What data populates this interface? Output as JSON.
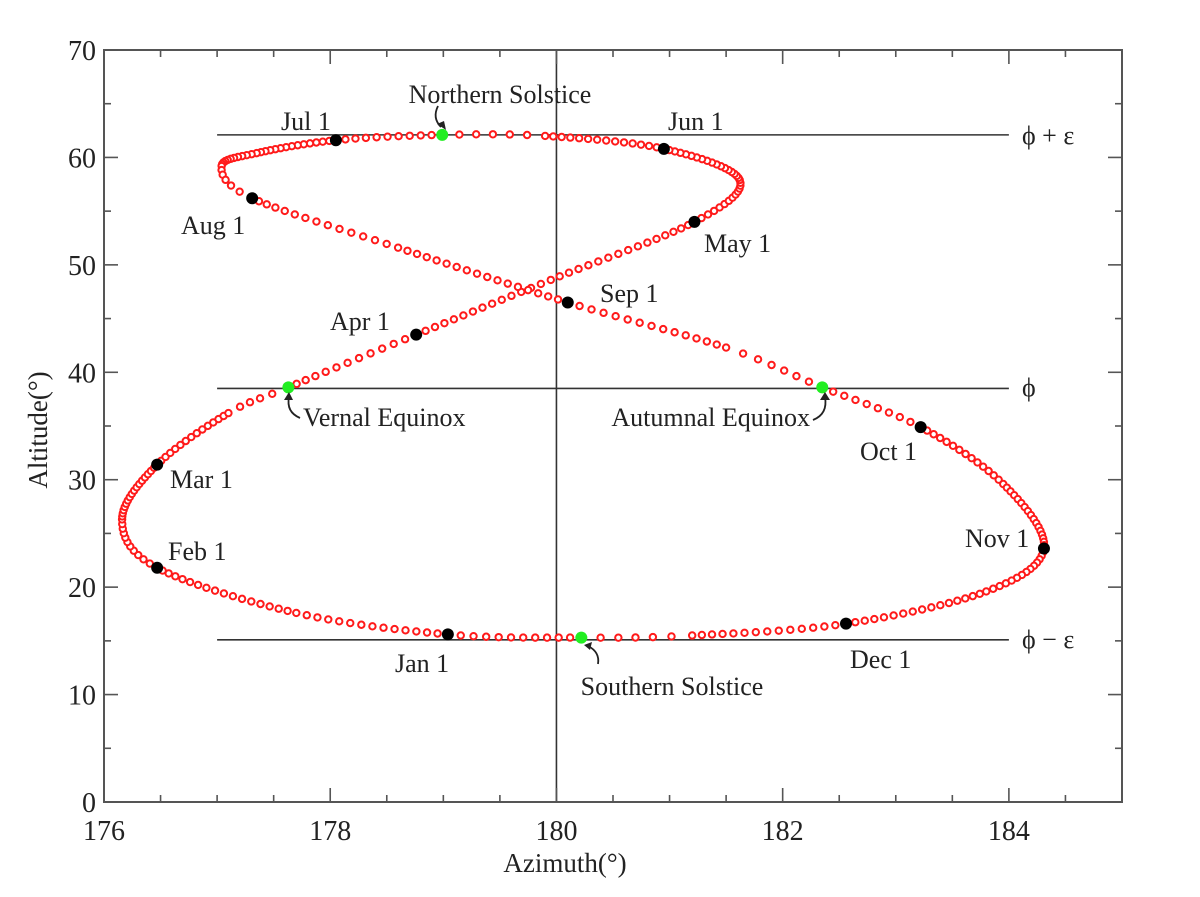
{
  "chart_data": {
    "type": "scatter",
    "xlabel": "Azimuth(°)",
    "ylabel": "Altitude(°)",
    "xlim": [
      176,
      185
    ],
    "ylim": [
      0,
      70
    ],
    "x_ticks": [
      "176",
      "178",
      "180",
      "182",
      "184"
    ],
    "y_ticks": [
      "0",
      "10",
      "20",
      "30",
      "40",
      "50",
      "60",
      "70"
    ],
    "grid": false,
    "colors": {
      "curve": "#ff1a1a",
      "month_marker": "#000000",
      "solstice_equinox_marker": "#22ee22",
      "lines": "#333333"
    },
    "reference_lines": {
      "horizontal": [
        {
          "label": "ϕ + ε",
          "altitude": 62.1
        },
        {
          "label": "ϕ",
          "altitude": 38.5
        },
        {
          "label": "ϕ − ε",
          "altitude": 15.1
        }
      ],
      "vertical_azimuth": 180
    },
    "curve_points_day_az_alt": [
      [
        1,
        179.04,
        15.6
      ],
      [
        15,
        177.7,
        17.6
      ],
      [
        32,
        176.47,
        21.8
      ],
      [
        43,
        176.16,
        26.3
      ],
      [
        60,
        176.47,
        31.4
      ],
      [
        74,
        177.1,
        36.2
      ],
      [
        79,
        177.63,
        38.6
      ],
      [
        91,
        178.76,
        43.5
      ],
      [
        105,
        179.95,
        48.6
      ],
      [
        121,
        181.22,
        54.0
      ],
      [
        134,
        181.62,
        57.9
      ],
      [
        152,
        180.95,
        60.8
      ],
      [
        166,
        179.9,
        62.0
      ],
      [
        172,
        178.99,
        62.1
      ],
      [
        182,
        178.05,
        61.6
      ],
      [
        196,
        177.35,
        60.4
      ],
      [
        207,
        177.04,
        59.2
      ],
      [
        213,
        177.31,
        56.2
      ],
      [
        227,
        178.6,
        51.6
      ],
      [
        244,
        180.1,
        46.5
      ],
      [
        258,
        181.5,
        42.3
      ],
      [
        265,
        182.35,
        38.6
      ],
      [
        274,
        183.22,
        34.9
      ],
      [
        288,
        183.95,
        29.6
      ],
      [
        305,
        184.31,
        23.6
      ],
      [
        319,
        183.8,
        19.6
      ],
      [
        335,
        182.56,
        16.6
      ],
      [
        349,
        181.2,
        15.5
      ],
      [
        355,
        180.22,
        15.3
      ]
    ],
    "month_markers": [
      {
        "label": "Jan 1",
        "az": 179.04,
        "alt": 15.6
      },
      {
        "label": "Feb 1",
        "az": 176.47,
        "alt": 21.8
      },
      {
        "label": "Mar 1",
        "az": 176.47,
        "alt": 31.4
      },
      {
        "label": "Apr 1",
        "az": 178.76,
        "alt": 43.5
      },
      {
        "label": "May 1",
        "az": 181.22,
        "alt": 54.0
      },
      {
        "label": "Jun 1",
        "az": 180.95,
        "alt": 60.8
      },
      {
        "label": "Jul 1",
        "az": 178.05,
        "alt": 61.6
      },
      {
        "label": "Aug 1",
        "az": 177.31,
        "alt": 56.2
      },
      {
        "label": "Sep 1",
        "az": 180.1,
        "alt": 46.5
      },
      {
        "label": "Oct 1",
        "az": 183.22,
        "alt": 34.9
      },
      {
        "label": "Nov 1",
        "az": 184.31,
        "alt": 23.6
      },
      {
        "label": "Dec 1",
        "az": 182.56,
        "alt": 16.6
      }
    ],
    "special_markers": [
      {
        "label": "Northern Solstice",
        "az": 178.99,
        "alt": 62.1
      },
      {
        "label": "Vernal Equinox",
        "az": 177.63,
        "alt": 38.6
      },
      {
        "label": "Autumnal Equinox",
        "az": 182.35,
        "alt": 38.6
      },
      {
        "label": "Southern Solstice",
        "az": 180.22,
        "alt": 15.3
      }
    ]
  }
}
